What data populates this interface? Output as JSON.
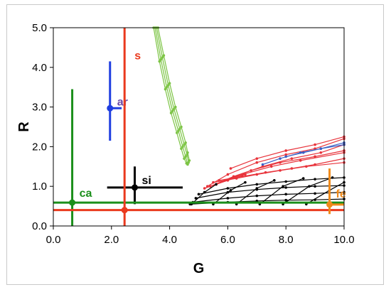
{
  "chart_data": {
    "type": "scatter",
    "title": "",
    "xlabel": "G",
    "ylabel": "R",
    "xlim": [
      0,
      10
    ],
    "ylim": [
      0,
      5
    ],
    "grid": false,
    "legend": "none",
    "xticks": [
      "0.0",
      "2.0",
      "4.0",
      "6.0",
      "8.0",
      "10.0"
    ],
    "yticks": [
      "0.0",
      "1.0",
      "2.0",
      "3.0",
      "4.0",
      "5.0"
    ],
    "points": [
      {
        "label": "ar",
        "color": "#1f3ee0",
        "x": 1.95,
        "y": 2.97,
        "x_err": [
          1.85,
          2.35
        ],
        "y_err": [
          2.15,
          4.15
        ],
        "label_color": "#6a49a8"
      },
      {
        "label": "si",
        "color": "#000000",
        "x": 2.8,
        "y": 0.97,
        "x_err": [
          1.85,
          4.45
        ],
        "y_err": [
          0.55,
          1.5
        ],
        "label_color": "#000000"
      },
      {
        "label": "ca",
        "color": "#1b8f1b",
        "x": 0.65,
        "y": 0.59,
        "x_err": [
          0,
          10
        ],
        "y_err": [
          0,
          3.45
        ],
        "label_color": "#1b8f1b"
      },
      {
        "label": "s",
        "color": "#ea3a1e",
        "x": 2.45,
        "y": 0.4,
        "x_err": [
          0,
          10
        ],
        "y_err": [
          0,
          5
        ],
        "label_color": "#ea3a1e"
      },
      {
        "label": "fe",
        "color": "#f08a1a",
        "x": 9.5,
        "y": 0.54,
        "x_err": [
          9.5,
          10
        ],
        "y_err": [
          0.3,
          1.45
        ],
        "label_color": "#f08a1a"
      }
    ],
    "series": [
      {
        "color": "#7cc444",
        "curves": [
          [
            [
              3.5,
              5.0
            ],
            [
              3.7,
              4.2
            ],
            [
              3.9,
              3.5
            ],
            [
              4.1,
              2.9
            ],
            [
              4.3,
              2.4
            ],
            [
              4.45,
              2.0
            ],
            [
              4.55,
              1.75
            ],
            [
              4.62,
              1.55
            ]
          ],
          [
            [
              3.55,
              5.0
            ],
            [
              3.75,
              4.25
            ],
            [
              3.95,
              3.55
            ],
            [
              4.15,
              2.95
            ],
            [
              4.35,
              2.45
            ],
            [
              4.5,
              2.05
            ],
            [
              4.6,
              1.8
            ],
            [
              4.65,
              1.6
            ]
          ],
          [
            [
              3.6,
              5.0
            ],
            [
              3.8,
              4.3
            ],
            [
              4.0,
              3.6
            ],
            [
              4.2,
              3.0
            ],
            [
              4.4,
              2.5
            ],
            [
              4.55,
              2.1
            ],
            [
              4.62,
              1.85
            ],
            [
              4.68,
              1.65
            ]
          ],
          [
            [
              3.45,
              5.0
            ],
            [
              3.65,
              4.15
            ],
            [
              3.85,
              3.45
            ],
            [
              4.05,
              2.85
            ],
            [
              4.25,
              2.35
            ],
            [
              4.4,
              1.95
            ],
            [
              4.5,
              1.7
            ],
            [
              4.58,
              1.58
            ]
          ]
        ]
      },
      {
        "color": "#e8333b",
        "curves": [
          [
            [
              5.3,
              1.0
            ],
            [
              6.0,
              1.3
            ],
            [
              7.0,
              1.6
            ],
            [
              8.0,
              1.8
            ],
            [
              9.0,
              1.95
            ],
            [
              10.0,
              2.2
            ]
          ],
          [
            [
              5.4,
              1.0
            ],
            [
              6.2,
              1.25
            ],
            [
              7.2,
              1.5
            ],
            [
              8.2,
              1.7
            ],
            [
              9.2,
              1.85
            ],
            [
              10.0,
              2.05
            ]
          ],
          [
            [
              5.6,
              1.05
            ],
            [
              6.5,
              1.3
            ],
            [
              7.5,
              1.5
            ],
            [
              8.5,
              1.65
            ],
            [
              10.0,
              1.85
            ]
          ],
          [
            [
              5.9,
              1.15
            ],
            [
              6.8,
              1.4
            ],
            [
              7.8,
              1.6
            ],
            [
              9.0,
              1.75
            ],
            [
              10.0,
              1.9
            ]
          ],
          [
            [
              5.5,
              1.1
            ],
            [
              6.3,
              1.2
            ],
            [
              7.0,
              1.3
            ],
            [
              7.8,
              1.4
            ],
            [
              8.7,
              1.5
            ],
            [
              10.0,
              1.6
            ]
          ],
          [
            [
              5.7,
              1.15
            ],
            [
              6.5,
              1.25
            ],
            [
              7.3,
              1.35
            ],
            [
              8.2,
              1.45
            ],
            [
              9.0,
              1.55
            ],
            [
              10.0,
              1.7
            ]
          ],
          [
            [
              6.1,
              1.45
            ],
            [
              7.0,
              1.7
            ],
            [
              8.0,
              1.9
            ],
            [
              9.0,
              2.05
            ],
            [
              10.0,
              2.25
            ]
          ],
          [
            [
              5.2,
              0.95
            ],
            [
              5.6,
              1.05
            ],
            [
              6.0,
              1.15
            ],
            [
              6.6,
              1.3
            ]
          ]
        ]
      },
      {
        "color": "#3b5fc4",
        "curves": [
          [
            [
              8.0,
              1.75
            ],
            [
              8.6,
              1.85
            ],
            [
              9.2,
              1.95
            ],
            [
              10.0,
              2.1
            ]
          ],
          [
            [
              7.2,
              1.55
            ],
            [
              7.8,
              1.7
            ],
            [
              8.5,
              1.85
            ],
            [
              9.2,
              1.95
            ],
            [
              10.0,
              2.05
            ]
          ]
        ]
      },
      {
        "color": "#000000",
        "curves": [
          [
            [
              4.7,
              0.55
            ],
            [
              6.0,
              0.6
            ],
            [
              7.0,
              0.63
            ],
            [
              8.0,
              0.65
            ],
            [
              9.0,
              0.66
            ],
            [
              10.0,
              0.68
            ]
          ],
          [
            [
              4.8,
              0.6
            ],
            [
              6.0,
              0.7
            ],
            [
              7.0,
              0.76
            ],
            [
              8.0,
              0.8
            ],
            [
              9.0,
              0.82
            ],
            [
              10.0,
              0.85
            ]
          ],
          [
            [
              4.9,
              0.7
            ],
            [
              6.0,
              0.85
            ],
            [
              7.0,
              0.92
            ],
            [
              8.0,
              0.97
            ],
            [
              9.0,
              1.0
            ],
            [
              10.0,
              1.02
            ]
          ],
          [
            [
              5.0,
              0.8
            ],
            [
              6.0,
              0.95
            ],
            [
              7.0,
              1.05
            ],
            [
              8.0,
              1.12
            ],
            [
              9.0,
              1.18
            ],
            [
              10.0,
              1.22
            ]
          ],
          [
            [
              4.75,
              0.55
            ],
            [
              5.2,
              0.85
            ],
            [
              5.6,
              1.05
            ]
          ],
          [
            [
              5.5,
              0.55
            ],
            [
              6.1,
              0.9
            ],
            [
              6.6,
              1.1
            ]
          ],
          [
            [
              6.3,
              0.55
            ],
            [
              7.0,
              0.95
            ],
            [
              7.6,
              1.15
            ]
          ],
          [
            [
              7.1,
              0.55
            ],
            [
              7.9,
              1.0
            ],
            [
              8.6,
              1.2
            ]
          ],
          [
            [
              7.9,
              0.55
            ],
            [
              8.8,
              1.0
            ],
            [
              9.6,
              1.22
            ]
          ],
          [
            [
              8.7,
              0.55
            ],
            [
              9.5,
              0.9
            ],
            [
              10.0,
              1.1
            ]
          ]
        ]
      }
    ]
  }
}
